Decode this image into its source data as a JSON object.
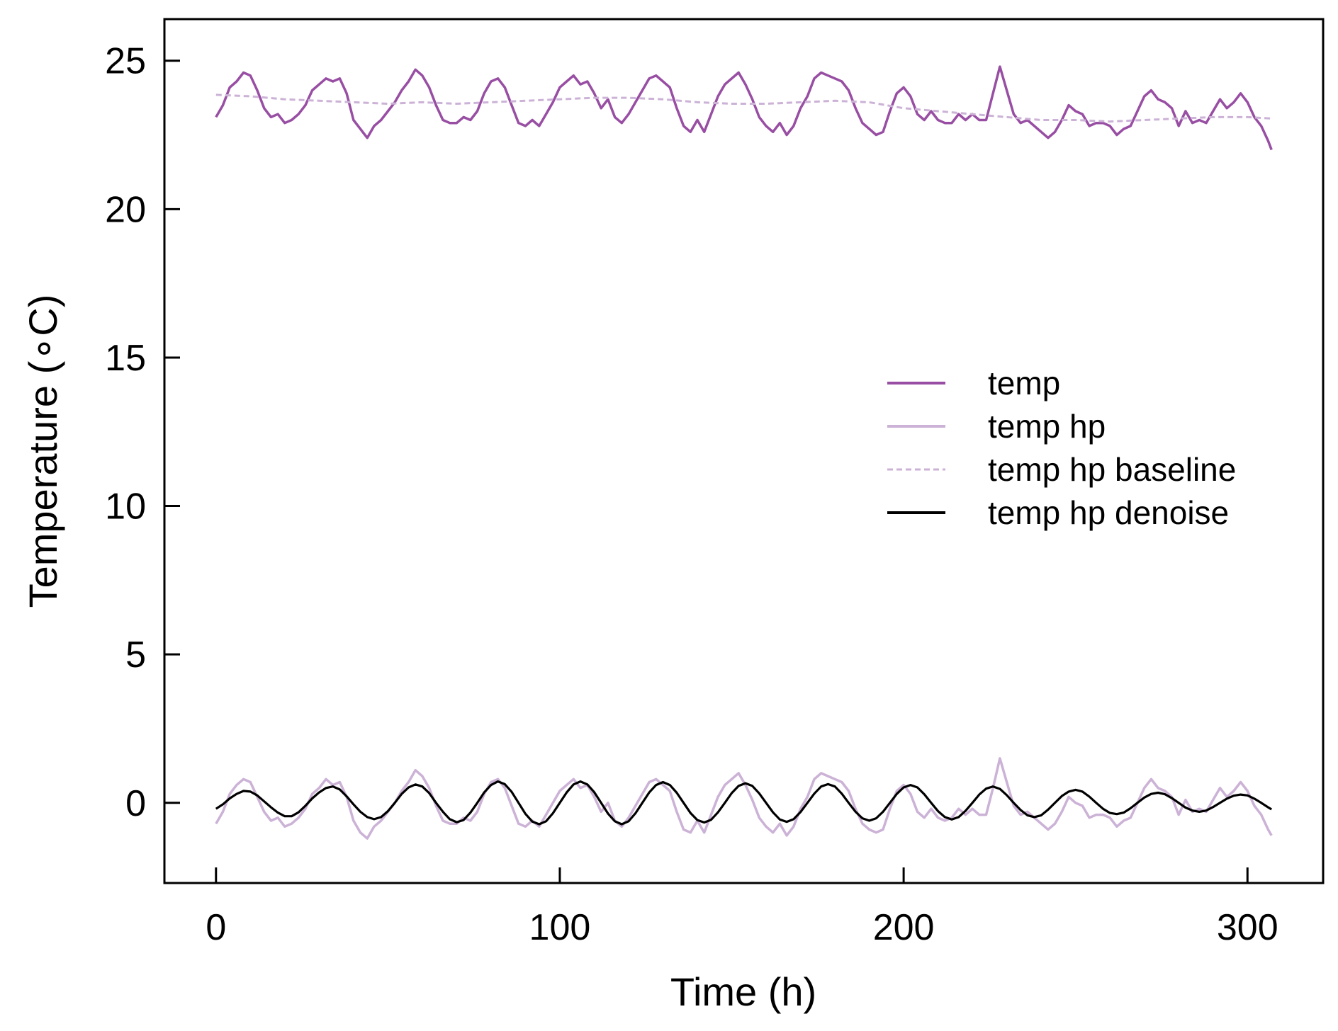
{
  "chart_data": {
    "type": "line",
    "xlabel": "Time (h)",
    "ylabel": "Temperature (∘C)",
    "xlim": [
      -15,
      322
    ],
    "ylim": [
      -2.7,
      26.4
    ],
    "xticks": [
      0,
      100,
      200,
      300
    ],
    "yticks": [
      0,
      5,
      10,
      15,
      20,
      25
    ],
    "x_tick_labels": [
      "0",
      "100",
      "200",
      "300"
    ],
    "y_tick_labels": [
      "0",
      "5",
      "10",
      "15",
      "20",
      "25"
    ],
    "legend_position": "center-right",
    "grid": false,
    "series": [
      {
        "name": "temp",
        "color": "#984ea3",
        "style": "solid",
        "x": [
          0,
          2,
          4,
          6,
          8,
          10,
          12,
          14,
          16,
          18,
          20,
          22,
          24,
          26,
          28,
          30,
          32,
          34,
          36,
          38,
          40,
          42,
          44,
          46,
          48,
          50,
          52,
          54,
          56,
          58,
          60,
          62,
          64,
          66,
          68,
          70,
          72,
          74,
          76,
          78,
          80,
          82,
          84,
          86,
          88,
          90,
          92,
          94,
          96,
          98,
          100,
          102,
          104,
          106,
          108,
          110,
          112,
          114,
          116,
          118,
          120,
          122,
          124,
          126,
          128,
          130,
          132,
          134,
          136,
          138,
          140,
          142,
          144,
          146,
          148,
          150,
          152,
          154,
          156,
          158,
          160,
          162,
          164,
          166,
          168,
          170,
          172,
          174,
          176,
          178,
          180,
          182,
          184,
          186,
          188,
          190,
          192,
          194,
          196,
          198,
          200,
          202,
          204,
          206,
          208,
          210,
          212,
          214,
          216,
          218,
          220,
          222,
          224,
          226,
          228,
          230,
          232,
          234,
          236,
          238,
          240,
          242,
          244,
          246,
          248,
          250,
          252,
          254,
          256,
          258,
          260,
          262,
          264,
          266,
          268,
          270,
          272,
          274,
          276,
          278,
          280,
          282,
          284,
          286,
          288,
          290,
          292,
          294,
          296,
          298,
          300,
          302,
          304,
          306,
          307
        ],
        "y": [
          23.1,
          23.5,
          24.1,
          24.3,
          24.6,
          24.5,
          24.0,
          23.4,
          23.1,
          23.2,
          22.9,
          23.0,
          23.2,
          23.5,
          24.0,
          24.2,
          24.4,
          24.3,
          24.4,
          23.9,
          23.0,
          22.7,
          22.4,
          22.8,
          23.0,
          23.3,
          23.6,
          24.0,
          24.3,
          24.7,
          24.5,
          24.1,
          23.5,
          23.0,
          22.9,
          22.9,
          23.1,
          23.0,
          23.3,
          23.9,
          24.3,
          24.4,
          24.1,
          23.5,
          22.9,
          22.8,
          23.0,
          22.8,
          23.2,
          23.6,
          24.1,
          24.3,
          24.5,
          24.2,
          24.3,
          23.9,
          23.4,
          23.7,
          23.1,
          22.9,
          23.2,
          23.6,
          24.0,
          24.4,
          24.5,
          24.3,
          24.1,
          23.4,
          22.8,
          22.6,
          23.0,
          22.6,
          23.2,
          23.8,
          24.2,
          24.4,
          24.6,
          24.2,
          23.7,
          23.1,
          22.8,
          22.6,
          22.9,
          22.5,
          22.8,
          23.4,
          23.8,
          24.4,
          24.6,
          24.5,
          24.4,
          24.3,
          24.0,
          23.4,
          22.9,
          22.7,
          22.5,
          22.6,
          23.3,
          23.9,
          24.1,
          23.8,
          23.2,
          23.0,
          23.3,
          23.0,
          22.9,
          22.9,
          23.2,
          23.0,
          23.2,
          23.0,
          23.0,
          23.9,
          24.8,
          24.0,
          23.2,
          22.9,
          23.0,
          22.8,
          22.6,
          22.4,
          22.6,
          23.0,
          23.5,
          23.3,
          23.2,
          22.8,
          22.9,
          22.9,
          22.8,
          22.5,
          22.7,
          22.8,
          23.3,
          23.8,
          24.0,
          23.7,
          23.6,
          23.4,
          22.8,
          23.3,
          22.9,
          23.0,
          22.9,
          23.3,
          23.7,
          23.4,
          23.6,
          23.9,
          23.6,
          23.1,
          22.8,
          22.3,
          22.0
        ]
      },
      {
        "name": "temp hp",
        "color": "#cbb2d6",
        "style": "solid",
        "x": [
          0,
          2,
          4,
          6,
          8,
          10,
          12,
          14,
          16,
          18,
          20,
          22,
          24,
          26,
          28,
          30,
          32,
          34,
          36,
          38,
          40,
          42,
          44,
          46,
          48,
          50,
          52,
          54,
          56,
          58,
          60,
          62,
          64,
          66,
          68,
          70,
          72,
          74,
          76,
          78,
          80,
          82,
          84,
          86,
          88,
          90,
          92,
          94,
          96,
          98,
          100,
          102,
          104,
          106,
          108,
          110,
          112,
          114,
          116,
          118,
          120,
          122,
          124,
          126,
          128,
          130,
          132,
          134,
          136,
          138,
          140,
          142,
          144,
          146,
          148,
          150,
          152,
          154,
          156,
          158,
          160,
          162,
          164,
          166,
          168,
          170,
          172,
          174,
          176,
          178,
          180,
          182,
          184,
          186,
          188,
          190,
          192,
          194,
          196,
          198,
          200,
          202,
          204,
          206,
          208,
          210,
          212,
          214,
          216,
          218,
          220,
          222,
          224,
          226,
          228,
          230,
          232,
          234,
          236,
          238,
          240,
          242,
          244,
          246,
          248,
          250,
          252,
          254,
          256,
          258,
          260,
          262,
          264,
          266,
          268,
          270,
          272,
          274,
          276,
          278,
          280,
          282,
          284,
          286,
          288,
          290,
          292,
          294,
          296,
          298,
          300,
          302,
          304,
          306,
          307
        ],
        "y": [
          -0.7,
          -0.3,
          0.3,
          0.6,
          0.8,
          0.7,
          0.2,
          -0.3,
          -0.6,
          -0.5,
          -0.8,
          -0.7,
          -0.5,
          -0.2,
          0.3,
          0.5,
          0.8,
          0.6,
          0.7,
          0.2,
          -0.6,
          -1.0,
          -1.2,
          -0.8,
          -0.6,
          -0.3,
          0.0,
          0.4,
          0.7,
          1.1,
          0.9,
          0.5,
          -0.1,
          -0.6,
          -0.7,
          -0.7,
          -0.5,
          -0.6,
          -0.3,
          0.3,
          0.7,
          0.8,
          0.5,
          -0.1,
          -0.7,
          -0.8,
          -0.6,
          -0.8,
          -0.4,
          0.0,
          0.4,
          0.6,
          0.8,
          0.5,
          0.6,
          0.2,
          -0.3,
          0.0,
          -0.6,
          -0.8,
          -0.5,
          -0.1,
          0.3,
          0.7,
          0.8,
          0.6,
          0.4,
          -0.3,
          -0.9,
          -1.0,
          -0.6,
          -1.0,
          -0.4,
          0.2,
          0.6,
          0.8,
          1.0,
          0.6,
          0.1,
          -0.5,
          -0.8,
          -1.0,
          -0.7,
          -1.1,
          -0.8,
          -0.2,
          0.2,
          0.8,
          1.0,
          0.9,
          0.8,
          0.7,
          0.4,
          -0.2,
          -0.7,
          -0.9,
          -1.0,
          -0.9,
          -0.2,
          0.4,
          0.6,
          0.3,
          -0.3,
          -0.5,
          -0.2,
          -0.5,
          -0.6,
          -0.5,
          -0.2,
          -0.4,
          -0.2,
          -0.4,
          -0.4,
          0.5,
          1.5,
          0.7,
          -0.1,
          -0.4,
          -0.3,
          -0.5,
          -0.7,
          -0.9,
          -0.7,
          -0.3,
          0.2,
          0.0,
          -0.1,
          -0.5,
          -0.4,
          -0.4,
          -0.5,
          -0.8,
          -0.6,
          -0.5,
          0.0,
          0.5,
          0.8,
          0.5,
          0.4,
          0.2,
          -0.4,
          0.1,
          -0.3,
          -0.2,
          -0.3,
          0.1,
          0.5,
          0.2,
          0.4,
          0.7,
          0.4,
          -0.1,
          -0.4,
          -0.9,
          -1.1
        ]
      },
      {
        "name": "temp hp baseline",
        "color": "#cbb2d6",
        "style": "dashed",
        "x": [
          0,
          10,
          20,
          30,
          40,
          50,
          60,
          70,
          80,
          90,
          100,
          110,
          120,
          130,
          140,
          150,
          160,
          170,
          180,
          190,
          200,
          210,
          220,
          230,
          240,
          250,
          260,
          270,
          280,
          290,
          300,
          307
        ],
        "y": [
          23.85,
          23.8,
          23.7,
          23.65,
          23.6,
          23.55,
          23.6,
          23.55,
          23.6,
          23.65,
          23.7,
          23.75,
          23.75,
          23.7,
          23.6,
          23.55,
          23.55,
          23.6,
          23.65,
          23.6,
          23.4,
          23.3,
          23.2,
          23.1,
          23.0,
          23.0,
          22.95,
          23.0,
          23.05,
          23.1,
          23.1,
          23.05
        ]
      },
      {
        "name": "temp hp denoise",
        "color": "#000000",
        "style": "solid",
        "x": [
          0,
          2,
          4,
          6,
          8,
          10,
          12,
          14,
          16,
          18,
          20,
          22,
          24,
          26,
          28,
          30,
          32,
          34,
          36,
          38,
          40,
          42,
          44,
          46,
          48,
          50,
          52,
          54,
          56,
          58,
          60,
          62,
          64,
          66,
          68,
          70,
          72,
          74,
          76,
          78,
          80,
          82,
          84,
          86,
          88,
          90,
          92,
          94,
          96,
          98,
          100,
          102,
          104,
          106,
          108,
          110,
          112,
          114,
          116,
          118,
          120,
          122,
          124,
          126,
          128,
          130,
          132,
          134,
          136,
          138,
          140,
          142,
          144,
          146,
          148,
          150,
          152,
          154,
          156,
          158,
          160,
          162,
          164,
          166,
          168,
          170,
          172,
          174,
          176,
          178,
          180,
          182,
          184,
          186,
          188,
          190,
          192,
          194,
          196,
          198,
          200,
          202,
          204,
          206,
          208,
          210,
          212,
          214,
          216,
          218,
          220,
          222,
          224,
          226,
          228,
          230,
          232,
          234,
          236,
          238,
          240,
          242,
          244,
          246,
          248,
          250,
          252,
          254,
          256,
          258,
          260,
          262,
          264,
          266,
          268,
          270,
          272,
          274,
          276,
          278,
          280,
          282,
          284,
          286,
          288,
          290,
          292,
          294,
          296,
          298,
          300,
          302,
          304,
          306,
          307
        ],
        "y": [
          -0.2,
          -0.05,
          0.15,
          0.3,
          0.4,
          0.38,
          0.25,
          0.05,
          -0.15,
          -0.33,
          -0.45,
          -0.45,
          -0.32,
          -0.1,
          0.15,
          0.35,
          0.5,
          0.55,
          0.45,
          0.22,
          -0.05,
          -0.3,
          -0.48,
          -0.55,
          -0.48,
          -0.28,
          0.0,
          0.3,
          0.52,
          0.62,
          0.55,
          0.33,
          0.0,
          -0.3,
          -0.55,
          -0.65,
          -0.58,
          -0.33,
          0.0,
          0.35,
          0.6,
          0.72,
          0.63,
          0.37,
          0.0,
          -0.37,
          -0.63,
          -0.72,
          -0.62,
          -0.35,
          0.0,
          0.35,
          0.62,
          0.72,
          0.62,
          0.36,
          0.0,
          -0.36,
          -0.62,
          -0.72,
          -0.62,
          -0.35,
          0.0,
          0.35,
          0.6,
          0.7,
          0.6,
          0.34,
          0.0,
          -0.34,
          -0.58,
          -0.66,
          -0.57,
          -0.32,
          0.0,
          0.33,
          0.57,
          0.66,
          0.57,
          0.32,
          0.0,
          -0.32,
          -0.56,
          -0.64,
          -0.55,
          -0.31,
          0.0,
          0.31,
          0.55,
          0.63,
          0.55,
          0.31,
          0.0,
          -0.3,
          -0.52,
          -0.6,
          -0.52,
          -0.3,
          0.0,
          0.3,
          0.52,
          0.6,
          0.52,
          0.29,
          0.0,
          -0.28,
          -0.48,
          -0.56,
          -0.48,
          -0.27,
          0.0,
          0.28,
          0.48,
          0.55,
          0.47,
          0.26,
          0.0,
          -0.24,
          -0.42,
          -0.48,
          -0.42,
          -0.23,
          0.0,
          0.23,
          0.38,
          0.44,
          0.38,
          0.21,
          0.0,
          -0.2,
          -0.34,
          -0.38,
          -0.33,
          -0.18,
          0.0,
          0.18,
          0.3,
          0.34,
          0.29,
          0.16,
          0.0,
          -0.16,
          -0.26,
          -0.3,
          -0.26,
          -0.14,
          0.0,
          0.14,
          0.24,
          0.28,
          0.25,
          0.14,
          0.0,
          -0.15,
          -0.22
        ]
      }
    ]
  }
}
